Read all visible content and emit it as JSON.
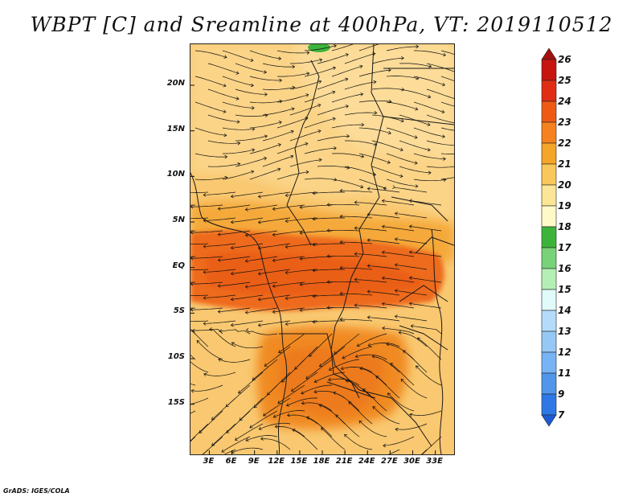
{
  "title": "WBPT [C] and Sreamline at 400hPa, VT: 2019110512",
  "credit": "GrADS: IGES/COLA",
  "lat_ticks": [
    "20N",
    "15N",
    "10N",
    "5N",
    "EQ",
    "5S",
    "10S",
    "15S"
  ],
  "lat_values": [
    20,
    15,
    10,
    5,
    0,
    -5,
    -10,
    -15
  ],
  "lon_ticks": [
    "3E",
    "6E",
    "9E",
    "12E",
    "15E",
    "18E",
    "21E",
    "24E",
    "27E",
    "30E",
    "33E"
  ],
  "lon_values": [
    3,
    6,
    9,
    12,
    15,
    18,
    21,
    24,
    27,
    30,
    33
  ],
  "map_extent": {
    "lon": [
      0.5,
      35.5
    ],
    "lat": [
      -20.5,
      24.5
    ]
  },
  "colorbar": {
    "labels": [
      "26",
      "25",
      "24",
      "23",
      "22",
      "21",
      "20",
      "19",
      "18",
      "17",
      "16",
      "15",
      "14",
      "13",
      "12",
      "11",
      "9",
      "7"
    ],
    "colors": [
      "#a50f0f",
      "#c8140f",
      "#e02d14",
      "#ee5a14",
      "#f5821e",
      "#f5a528",
      "#fac85a",
      "#fae696",
      "#fffac8",
      "#3cb43c",
      "#78d278",
      "#b4f0b4",
      "#e1fafa",
      "#b4dcfa",
      "#96c8f5",
      "#78b4f5",
      "#5096eb",
      "#2d78e6",
      "#1e5ad2"
    ]
  },
  "chart_data": {
    "type": "heatmap",
    "variable": "WBPT [C]",
    "level": "400hPa",
    "valid_time": "2019110512",
    "regions_degC": [
      {
        "area": "equatorial band 2S-3N",
        "value": 23
      },
      {
        "area": "south-central 10S-18S",
        "value": 22
      },
      {
        "area": "northern Sahel 10N-22N",
        "value": 20
      },
      {
        "area": "southern edge 18S-20S",
        "value": 21
      },
      {
        "area": "far north near 24N, 14E",
        "value": 17
      }
    ]
  }
}
